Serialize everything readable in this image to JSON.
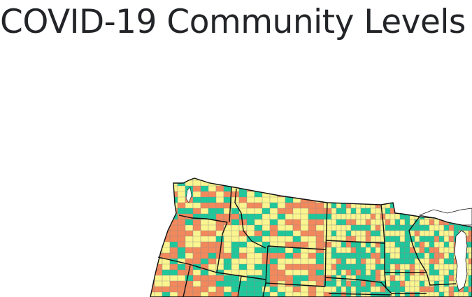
{
  "title": "COVID-19 Community Levels",
  "map": {
    "level_colors": [
      "#1ec89a",
      "#fbf58f",
      "#f2895c"
    ],
    "state_border_color": "#111111",
    "county_border_color": "#8a8a8a",
    "water_color": "#ffffff"
  }
}
